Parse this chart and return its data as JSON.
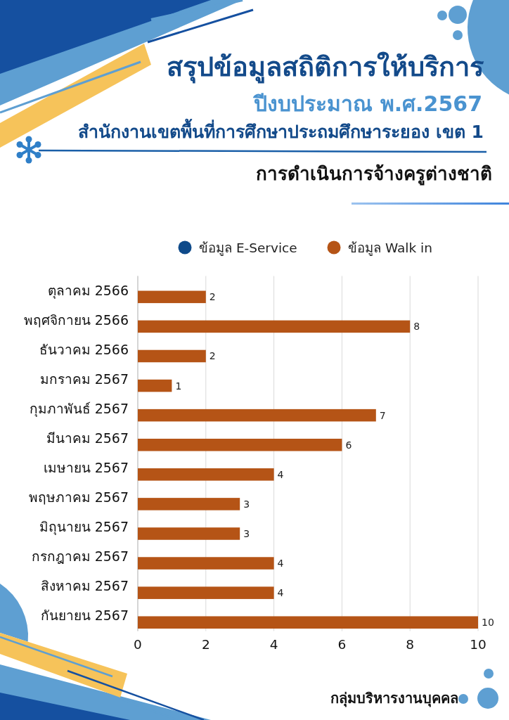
{
  "chart_data": {
    "type": "bar",
    "orientation": "horizontal",
    "title": "สรุปข้อมูลสถิติการให้บริการ",
    "subtitle": "ปีงบประมาณ พ.ศ.2567",
    "annotations": [
      "สำนักงานเขตพื้นที่การศึกษาประถมศึกษาระยอง เขต 1",
      "การดำเนินการจ้างครูต่างชาติ",
      "กลุ่มบริหารงานบุคคล"
    ],
    "categories": [
      "ตุลาคม 2566",
      "พฤศจิกายน 2566",
      "ธันวาคม 2566",
      "มกราคม 2567",
      "กุมภาพันธ์ 2567",
      "มีนาคม 2567",
      "เมษายน 2567",
      "พฤษภาคม 2567",
      "มิถุนายน 2567",
      "กรกฎาคม 2567",
      "สิงหาคม 2567",
      "กันยายน 2567"
    ],
    "series": [
      {
        "name": "ข้อมูล E-Service",
        "color": "#0e4a8a",
        "values": [
          0,
          0,
          0,
          0,
          0,
          0,
          0,
          0,
          0,
          0,
          0,
          0
        ]
      },
      {
        "name": "ข้อมูล Walk in",
        "color": "#b55416",
        "values": [
          2,
          8,
          2,
          1,
          7,
          6,
          4,
          3,
          3,
          4,
          4,
          10
        ],
        "value_labels": [
          "2",
          "8",
          "2",
          "1",
          "7",
          "6",
          "4",
          "3",
          "3",
          "4",
          "4",
          "10"
        ]
      }
    ],
    "xlim": [
      0,
      10
    ],
    "xticks": [
      0,
      2,
      4,
      6,
      8,
      10
    ],
    "grid": "x",
    "legend": "top"
  }
}
